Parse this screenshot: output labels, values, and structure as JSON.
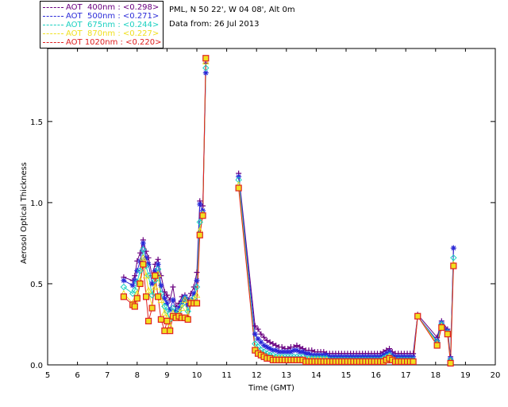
{
  "info": {
    "site": "PML, N 50 22', W 04 08', Alt 0m",
    "date": "Data from: 26 Jul 2013"
  },
  "legend": [
    {
      "label": "AOT  400nm : <0.298>",
      "color": "#6a0080"
    },
    {
      "label": "AOT  500nm : <0.271>",
      "color": "#2a2ad8"
    },
    {
      "label": "AOT  675nm : <0.244>",
      "color": "#19d0c0"
    },
    {
      "label": "AOT  870nm : <0.227>",
      "color": "#f0e020"
    },
    {
      "label": "AOT 1020nm : <0.220>",
      "color": "#e02020"
    }
  ],
  "chart_data": {
    "type": "line",
    "xlabel": "Time (GMT)",
    "ylabel": "Aerosol Optical Thickness",
    "xlim": [
      5,
      20
    ],
    "ylim": [
      0,
      1.95
    ],
    "xticks": [
      5,
      6,
      7,
      8,
      9,
      10,
      11,
      12,
      13,
      14,
      15,
      16,
      17,
      18,
      19,
      20
    ],
    "yticks": [
      "0.0",
      "0.5",
      "1.0",
      "1.5"
    ],
    "x": [
      7.55,
      7.85,
      7.92,
      8.0,
      8.1,
      8.2,
      8.3,
      8.38,
      8.5,
      8.6,
      8.7,
      8.8,
      8.92,
      9.0,
      9.1,
      9.2,
      9.3,
      9.4,
      9.5,
      9.6,
      9.7,
      9.8,
      9.9,
      10.0,
      10.1,
      10.2,
      10.3,
      10.57,
      11.4,
      11.95,
      12.05,
      12.15,
      12.25,
      12.35,
      12.45,
      12.55,
      12.65,
      12.75,
      12.85,
      12.95,
      13.05,
      13.15,
      13.25,
      13.35,
      13.45,
      13.55,
      13.65,
      13.75,
      13.85,
      13.95,
      14.05,
      14.15,
      14.25,
      14.35,
      14.45,
      14.55,
      14.65,
      14.75,
      14.85,
      14.95,
      15.05,
      15.15,
      15.25,
      15.35,
      15.45,
      15.55,
      15.65,
      15.75,
      15.85,
      15.95,
      16.05,
      16.15,
      16.25,
      16.35,
      16.45,
      16.55,
      16.65,
      16.75,
      16.85,
      16.95,
      17.05,
      17.15,
      17.25,
      17.4,
      18.05,
      18.2,
      18.4,
      18.5,
      18.6
    ],
    "series": [
      {
        "name": "AOT  400nm : <0.298>",
        "values": [
          0.54,
          0.52,
          0.55,
          0.64,
          0.69,
          0.77,
          0.7,
          0.66,
          0.55,
          0.62,
          0.65,
          0.55,
          0.45,
          0.43,
          0.4,
          0.48,
          0.36,
          0.38,
          0.42,
          0.43,
          0.4,
          0.44,
          0.48,
          0.57,
          1.01,
          0.98,
          1.86,
          null,
          1.18,
          0.24,
          0.22,
          0.19,
          0.17,
          0.15,
          0.14,
          0.13,
          0.12,
          0.11,
          0.11,
          0.1,
          0.1,
          0.11,
          0.11,
          0.12,
          0.11,
          0.1,
          0.09,
          0.09,
          0.09,
          0.08,
          0.08,
          0.08,
          0.08,
          0.07,
          0.07,
          0.07,
          0.07,
          0.07,
          0.07,
          0.07,
          0.07,
          0.07,
          0.07,
          0.07,
          0.07,
          0.07,
          0.07,
          0.07,
          0.07,
          0.07,
          0.07,
          0.07,
          0.08,
          0.09,
          0.1,
          0.08,
          0.07,
          0.07,
          0.07,
          0.07,
          0.07,
          0.07,
          0.07,
          0.31,
          0.17,
          0.27,
          0.22,
          0.05,
          0.72
        ]
      },
      {
        "name": "AOT  500nm : <0.271>",
        "values": [
          0.52,
          0.49,
          0.52,
          0.58,
          0.64,
          0.75,
          0.66,
          0.62,
          0.5,
          0.58,
          0.62,
          0.49,
          0.41,
          0.38,
          0.34,
          0.4,
          0.33,
          0.35,
          0.39,
          0.42,
          0.37,
          0.4,
          0.44,
          0.52,
          0.99,
          0.95,
          1.8,
          null,
          1.16,
          0.19,
          0.16,
          0.14,
          0.12,
          0.11,
          0.1,
          0.09,
          0.09,
          0.08,
          0.08,
          0.08,
          0.08,
          0.08,
          0.09,
          0.09,
          0.08,
          0.08,
          0.07,
          0.07,
          0.06,
          0.06,
          0.06,
          0.06,
          0.06,
          0.06,
          0.05,
          0.05,
          0.05,
          0.05,
          0.05,
          0.05,
          0.05,
          0.05,
          0.05,
          0.05,
          0.05,
          0.05,
          0.05,
          0.05,
          0.05,
          0.05,
          0.05,
          0.05,
          0.06,
          0.07,
          0.08,
          0.06,
          0.05,
          0.05,
          0.05,
          0.05,
          0.05,
          0.05,
          0.05,
          0.3,
          0.15,
          0.26,
          0.21,
          0.04,
          0.72
        ]
      },
      {
        "name": "AOT  675nm : <0.244>",
        "values": [
          0.48,
          0.44,
          0.46,
          0.51,
          0.58,
          0.71,
          0.61,
          0.55,
          0.43,
          0.52,
          0.59,
          0.44,
          0.36,
          0.33,
          0.28,
          0.35,
          0.31,
          0.33,
          0.37,
          0.41,
          0.33,
          0.39,
          0.41,
          0.48,
          0.88,
          0.93,
          1.83,
          null,
          1.14,
          0.13,
          0.11,
          0.09,
          0.08,
          0.07,
          0.06,
          0.06,
          0.05,
          0.05,
          0.05,
          0.05,
          0.05,
          0.05,
          0.05,
          0.05,
          0.05,
          0.05,
          0.04,
          0.04,
          0.04,
          0.04,
          0.04,
          0.04,
          0.04,
          0.04,
          0.03,
          0.03,
          0.03,
          0.03,
          0.03,
          0.03,
          0.03,
          0.03,
          0.03,
          0.03,
          0.03,
          0.03,
          0.03,
          0.03,
          0.03,
          0.03,
          0.03,
          0.03,
          0.04,
          0.05,
          0.06,
          0.04,
          0.03,
          0.03,
          0.03,
          0.03,
          0.03,
          0.03,
          0.03,
          0.3,
          0.14,
          0.25,
          0.2,
          0.03,
          0.66
        ]
      },
      {
        "name": "AOT  870nm : <0.227>",
        "values": [
          0.44,
          0.38,
          0.4,
          0.44,
          0.52,
          0.66,
          0.55,
          0.46,
          0.36,
          0.48,
          0.56,
          0.4,
          0.32,
          0.29,
          0.24,
          0.32,
          0.3,
          0.31,
          0.35,
          0.4,
          0.3,
          0.39,
          0.39,
          0.43,
          0.83,
          0.93,
          1.87,
          null,
          1.11,
          0.1,
          0.08,
          0.07,
          0.06,
          0.05,
          0.04,
          0.04,
          0.04,
          0.04,
          0.04,
          0.03,
          0.03,
          0.03,
          0.03,
          0.03,
          0.03,
          0.03,
          0.03,
          0.03,
          0.03,
          0.03,
          0.03,
          0.03,
          0.03,
          0.03,
          0.02,
          0.02,
          0.02,
          0.02,
          0.02,
          0.02,
          0.02,
          0.02,
          0.02,
          0.02,
          0.02,
          0.02,
          0.02,
          0.02,
          0.02,
          0.02,
          0.02,
          0.02,
          0.03,
          0.04,
          0.05,
          0.03,
          0.02,
          0.02,
          0.02,
          0.02,
          0.02,
          0.02,
          0.02,
          0.3,
          0.13,
          0.24,
          0.19,
          0.02,
          0.62
        ]
      },
      {
        "name": "AOT 1020nm : <0.220>",
        "values": [
          0.42,
          0.37,
          0.36,
          0.41,
          0.5,
          0.62,
          0.42,
          0.27,
          0.35,
          0.55,
          0.42,
          0.28,
          0.21,
          0.27,
          0.21,
          0.3,
          0.29,
          0.3,
          0.29,
          0.29,
          0.28,
          0.38,
          0.38,
          0.38,
          0.8,
          0.92,
          1.89,
          null,
          1.09,
          0.09,
          0.07,
          0.06,
          0.05,
          0.04,
          0.04,
          0.03,
          0.03,
          0.03,
          0.03,
          0.03,
          0.03,
          0.03,
          0.03,
          0.03,
          0.03,
          0.03,
          0.02,
          0.02,
          0.02,
          0.02,
          0.02,
          0.02,
          0.02,
          0.02,
          0.02,
          0.02,
          0.02,
          0.02,
          0.02,
          0.02,
          0.02,
          0.02,
          0.02,
          0.02,
          0.02,
          0.02,
          0.02,
          0.02,
          0.02,
          0.02,
          0.02,
          0.02,
          0.02,
          0.03,
          0.04,
          0.03,
          0.02,
          0.02,
          0.02,
          0.02,
          0.02,
          0.02,
          0.02,
          0.3,
          0.12,
          0.23,
          0.19,
          0.01,
          0.61
        ]
      }
    ]
  }
}
